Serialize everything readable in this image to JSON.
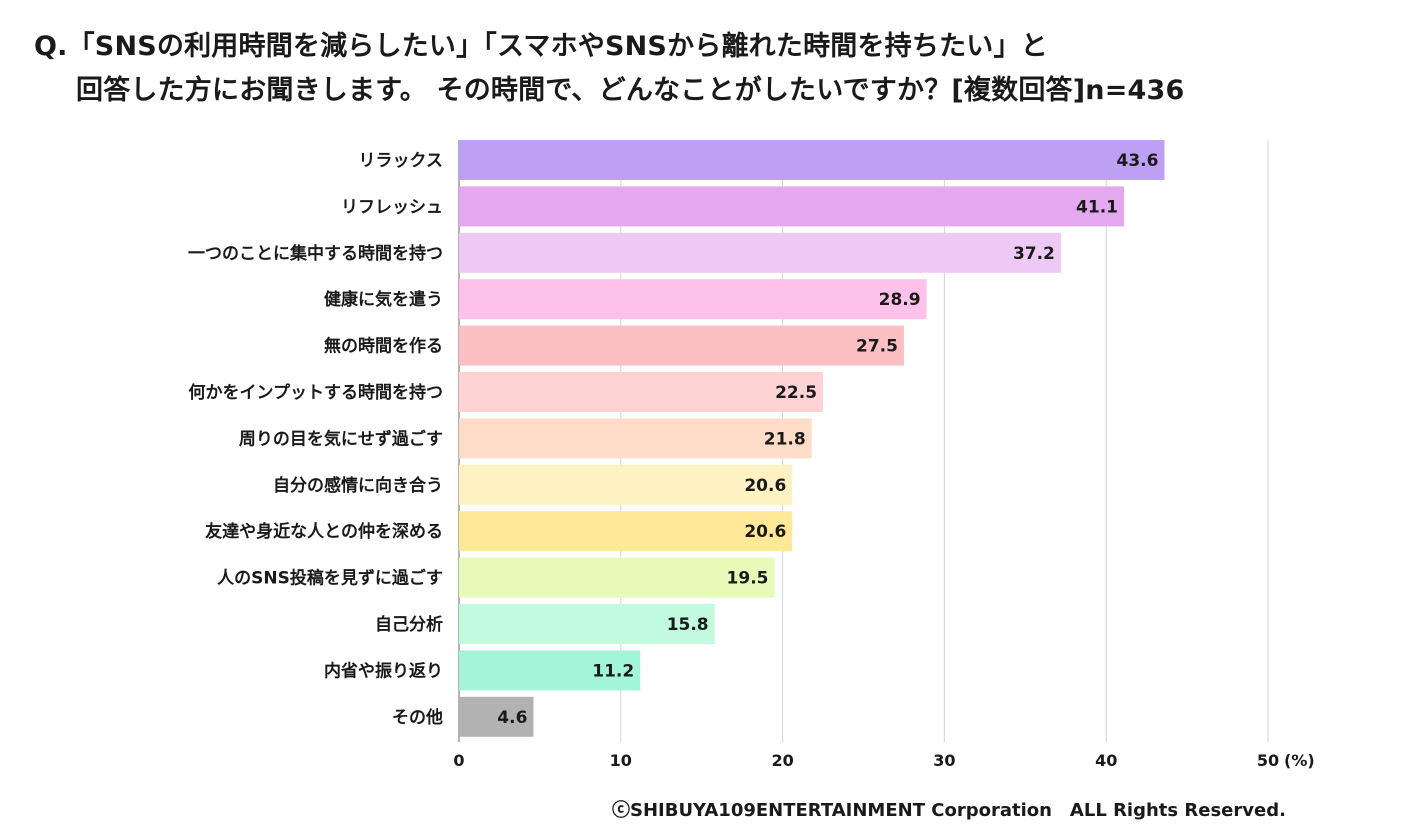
{
  "title": {
    "line1": "Q.「SNSの利用時間を減らしたい」「スマホやSNSから離れた時間を持ちたい」と",
    "line2": "回答した方にお聞きします。 その時間で、どんなことがしたいですか？[複数回答]n=436"
  },
  "copyright": "ⓒSHIBUYA109ENTERTAINMENT Corporation　ALL Rights Reserved.",
  "chart_data": {
    "type": "bar",
    "orientation": "horizontal",
    "unit": "(%)",
    "xlim": [
      0,
      50
    ],
    "ticks": [
      "0",
      "10",
      "20",
      "30",
      "40",
      "50"
    ],
    "grid": true,
    "categories": [
      "リラックス",
      "リフレッシュ",
      "一つのことに集中する時間を持つ",
      "健康に気を遣う",
      "無の時間を作る",
      "何かをインプットする時間を持つ",
      "周りの目を気にせず過ごす",
      "自分の感情に向き合う",
      "友達や身近な人との仲を深める",
      "人のSNS投稿を見ずに過ごす",
      "自己分析",
      "内省や振り返り",
      "その他"
    ],
    "values": [
      43.6,
      41.1,
      37.2,
      28.9,
      27.5,
      22.5,
      21.8,
      20.6,
      20.6,
      19.5,
      15.8,
      11.2,
      4.6
    ],
    "value_labels": [
      "43.6",
      "41.1",
      "37.2",
      "28.9",
      "27.5",
      "22.5",
      "21.8",
      "20.6",
      "20.6",
      "19.5",
      "15.8",
      "11.2",
      "4.6"
    ],
    "colors": [
      "#bd9ff3",
      "#e3a8ef",
      "#efc9f6",
      "#fdc1ea",
      "#fcc0c4",
      "#fdd3d4",
      "#fedcc7",
      "#fff2c2",
      "#ffe998",
      "#e7fbb9",
      "#c1fadd",
      "#a2f5d9",
      "#b2b2b2"
    ]
  }
}
